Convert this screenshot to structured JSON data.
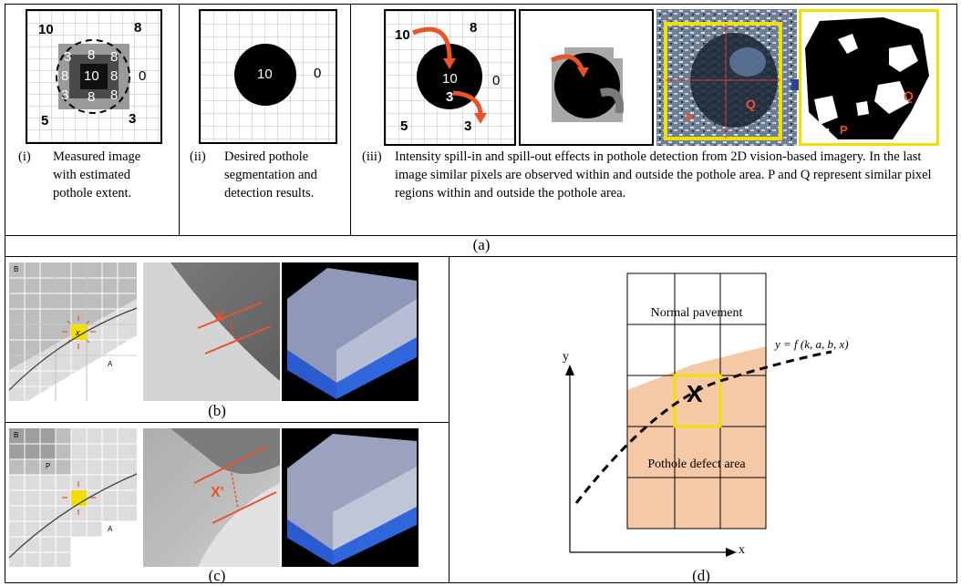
{
  "panel_a": {
    "label": "(a)",
    "grid_i": {
      "corners": [
        "10",
        "8",
        "5",
        "3"
      ],
      "center": [
        "3",
        "8",
        "8",
        "8",
        "10",
        "8",
        "3",
        "8",
        "8"
      ],
      "right": "0"
    },
    "grid_ii": {
      "center": "10",
      "right": "0"
    },
    "grid_iii": {
      "top_left": "10",
      "top_right": "8",
      "center": "10",
      "right": "0",
      "inner": "3",
      "below": "3",
      "bottom_left": "5"
    },
    "photo_labels": {
      "p": "P",
      "q": "Q"
    },
    "captions": [
      {
        "num": "(i)",
        "text": "Measured image with estimated pothole extent."
      },
      {
        "num": "(ii)",
        "text": "Desired pothole segmentation and detection results."
      },
      {
        "num": "(iii)",
        "text": "Intensity spill-in and spill-out effects in pothole detection from 2D vision-based imagery. In the last image similar pixels are observed within and outside the pothole area. P and Q represent similar pixel regions within and outside the pothole area."
      }
    ]
  },
  "panel_b": {
    "label": "(b)",
    "cell_letters": {
      "b": "B",
      "a": "A"
    },
    "mark": "X"
  },
  "panel_c": {
    "label": "(c)",
    "cell_letters": {
      "b": "B",
      "a": "A",
      "p": "P"
    },
    "mark": "X'"
  },
  "panel_d": {
    "label": "(d)",
    "region_top": "Normal pavement",
    "region_bottom": "Pothole defect area",
    "curve_label": "y = f (k, a, b, x)",
    "axis_y": "y",
    "axis_x": "x",
    "mark": "X"
  },
  "colors": {
    "orange": "#e8532a",
    "pothole_fill": "#f6c9a6",
    "yellow": "#f0e000",
    "blue_3d": "#2a5bd0"
  }
}
